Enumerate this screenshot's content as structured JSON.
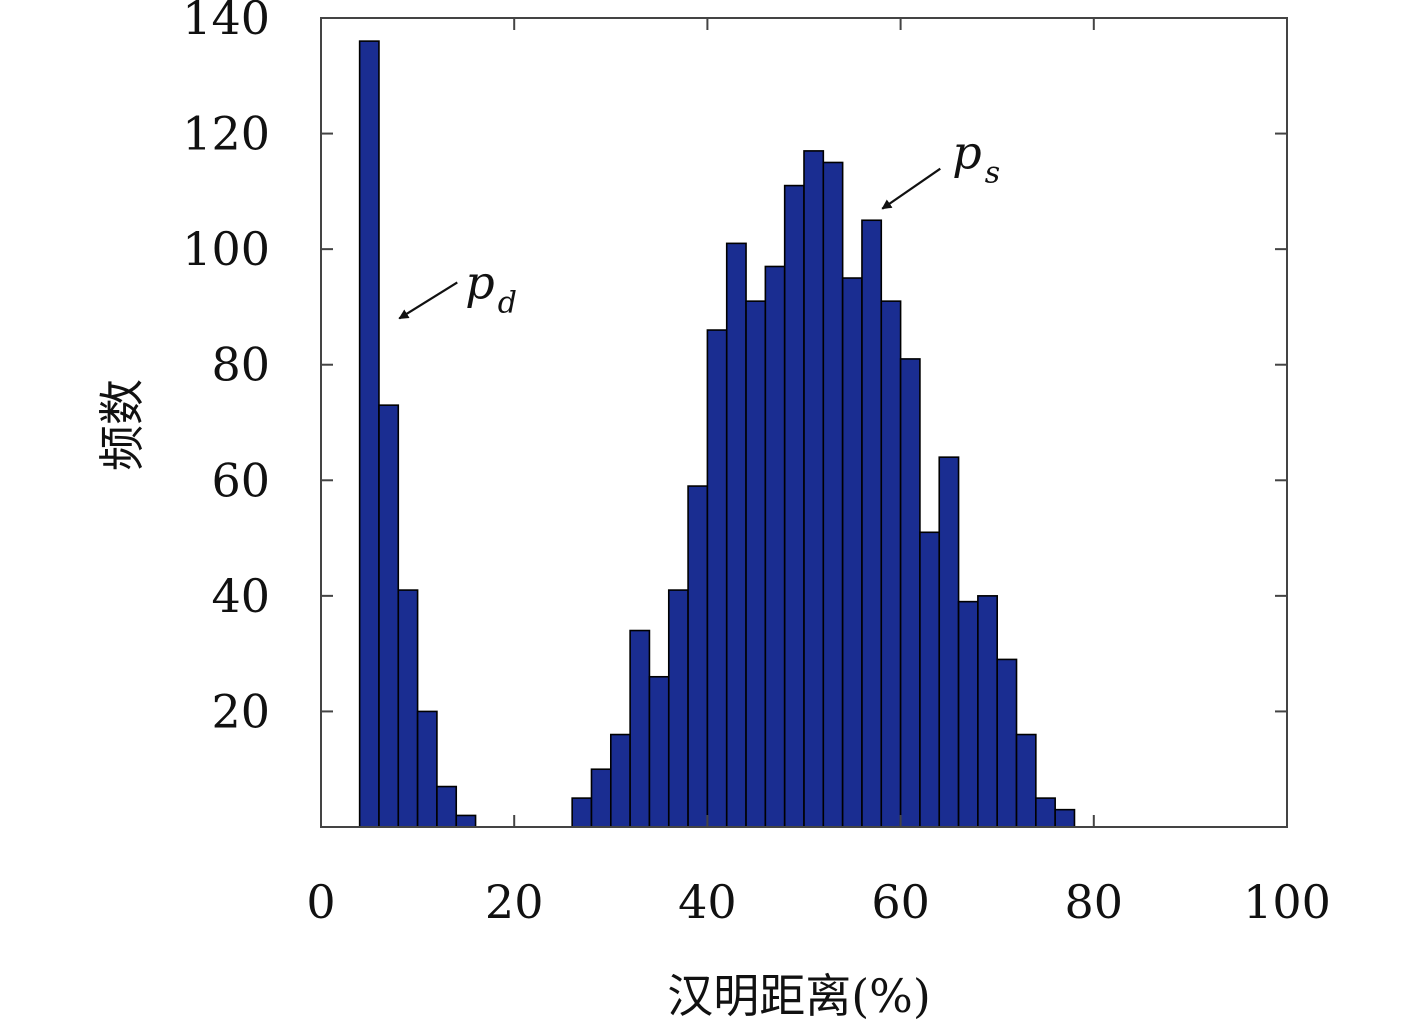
{
  "chart_data": {
    "type": "bar",
    "xlabel": "汉明距离(%)",
    "ylabel": "频数",
    "xlim": [
      0,
      100
    ],
    "ylim": [
      0,
      140
    ],
    "x_ticks": [
      0,
      20,
      40,
      60,
      80,
      100
    ],
    "y_ticks": [
      20,
      40,
      60,
      80,
      100,
      120,
      140
    ],
    "grid": false,
    "bin_width": 2,
    "series": [
      {
        "color": "#1a2d91",
        "bins": [
          {
            "x": 6,
            "value": 136
          },
          {
            "x": 8,
            "value": 73
          },
          {
            "x": 10,
            "value": 41
          },
          {
            "x": 12,
            "value": 20
          },
          {
            "x": 14,
            "value": 7
          },
          {
            "x": 16,
            "value": 2
          },
          {
            "x": 28,
            "value": 5
          },
          {
            "x": 30,
            "value": 10
          },
          {
            "x": 32,
            "value": 16
          },
          {
            "x": 34,
            "value": 34
          },
          {
            "x": 36,
            "value": 26
          },
          {
            "x": 38,
            "value": 41
          },
          {
            "x": 40,
            "value": 59
          },
          {
            "x": 42,
            "value": 86
          },
          {
            "x": 44,
            "value": 101
          },
          {
            "x": 46,
            "value": 91
          },
          {
            "x": 48,
            "value": 97
          },
          {
            "x": 50,
            "value": 111
          },
          {
            "x": 52,
            "value": 117
          },
          {
            "x": 54,
            "value": 115
          },
          {
            "x": 56,
            "value": 95
          },
          {
            "x": 58,
            "value": 105
          },
          {
            "x": 60,
            "value": 91
          },
          {
            "x": 62,
            "value": 81
          },
          {
            "x": 64,
            "value": 51
          },
          {
            "x": 66,
            "value": 64
          },
          {
            "x": 68,
            "value": 39
          },
          {
            "x": 70,
            "value": 40
          },
          {
            "x": 72,
            "value": 29
          },
          {
            "x": 74,
            "value": 16
          },
          {
            "x": 76,
            "value": 5
          },
          {
            "x": 78,
            "value": 3
          }
        ]
      }
    ],
    "annotations": [
      {
        "label": "p",
        "subscript": "d",
        "arrow_to": {
          "x": 8,
          "y": 88
        }
      },
      {
        "label": "p",
        "subscript": "s",
        "arrow_to": {
          "x": 58,
          "y": 107
        }
      }
    ]
  }
}
